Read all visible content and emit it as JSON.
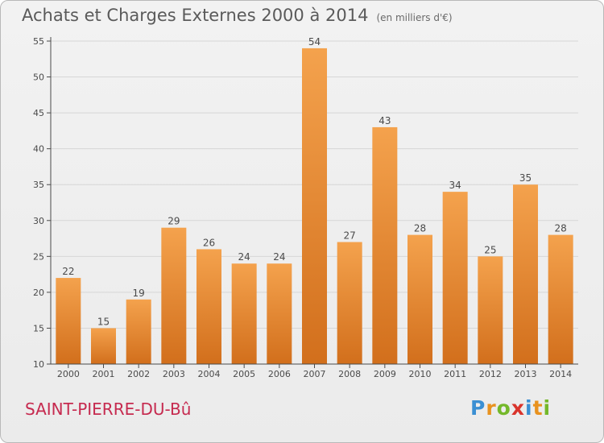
{
  "header": {
    "title": "Achats et Charges Externes 2000 à 2014",
    "subtitle": "(en milliers d'€)"
  },
  "footer": {
    "commune": "SAINT-PIERRE-DU-Bû",
    "logo_letters": [
      "P",
      "r",
      "o",
      "x",
      "i",
      "t",
      "i"
    ],
    "logo_colors": [
      "#3a8fd3",
      "#e8921f",
      "#74b82a",
      "#d9342c",
      "#3a8fd3",
      "#e8921f",
      "#74b82a"
    ]
  },
  "colors": {
    "bar_light": "#f4a24d",
    "bar_dark": "#d26f1c",
    "grid": "#d6d6d6",
    "axis": "#4a4a4a",
    "text": "#4a4a4a"
  },
  "chart_data": {
    "type": "bar",
    "categories": [
      "2000",
      "2001",
      "2002",
      "2003",
      "2004",
      "2005",
      "2006",
      "2007",
      "2008",
      "2009",
      "2010",
      "2011",
      "2012",
      "2013",
      "2014"
    ],
    "values": [
      22,
      15,
      19,
      29,
      26,
      24,
      24,
      54,
      27,
      43,
      28,
      34,
      25,
      35,
      28
    ],
    "title": "Achats et Charges Externes 2000 à 2014",
    "subtitle": "(en milliers d'€)",
    "xlabel": "",
    "ylabel": "",
    "ylim": [
      10,
      55
    ],
    "yticks": [
      10,
      15,
      20,
      25,
      30,
      35,
      40,
      45,
      50,
      55
    ],
    "grid": true,
    "data_labels": true
  }
}
